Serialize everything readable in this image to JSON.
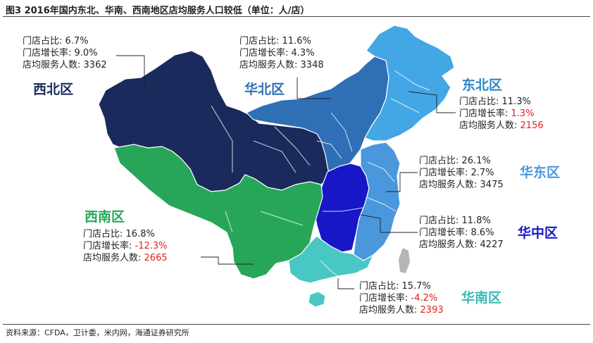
{
  "title": "图3  2016年国内东北、华南、西南地区店均服务人口较低（单位：人/店）",
  "source": "资料来源：CFDA，卫计委，米内网，海通证券研究所",
  "field_labels": {
    "share": "门店占比:",
    "growth": "门店增长率:",
    "service": "店均服务人数:"
  },
  "chart_data": {
    "type": "map",
    "title": "2016年国内东北、华南、西南地区店均服务人口较低（单位：人/店）",
    "regions": [
      {
        "key": "northwest",
        "name": "西北区",
        "store_share": "6.7%",
        "store_growth": "9.0%",
        "service_per_store": 3362,
        "color": "#1a2a5c"
      },
      {
        "key": "north",
        "name": "华北区",
        "store_share": "11.6%",
        "store_growth": "4.3%",
        "service_per_store": 3348,
        "color": "#2f6fb6"
      },
      {
        "key": "northeast",
        "name": "东北区",
        "store_share": "11.3%",
        "store_growth": "1.3%",
        "service_per_store": 2156,
        "color": "#43a7e6"
      },
      {
        "key": "east",
        "name": "华东区",
        "store_share": "26.1%",
        "store_growth": "2.7%",
        "service_per_store": 3475,
        "color": "#4a97dd"
      },
      {
        "key": "central",
        "name": "华中区",
        "store_share": "11.8%",
        "store_growth": "8.6%",
        "service_per_store": 4227,
        "color": "#1717c8"
      },
      {
        "key": "southwest",
        "name": "西南区",
        "store_share": "16.8%",
        "store_growth": "-12.3%",
        "service_per_store": 2665,
        "color": "#27a65a"
      },
      {
        "key": "south",
        "name": "华南区",
        "store_share": "15.7%",
        "store_growth": "-4.2%",
        "service_per_store": 2393,
        "color": "#48c7c4"
      }
    ],
    "highlight_color": "#e02020",
    "label_colors": {
      "northwest": "#1a2a5c",
      "north": "#2f6fb6",
      "northeast": "#2f86c8",
      "east": "#4a97dd",
      "central": "#1717c8",
      "southwest": "#27a65a",
      "south": "#38b9b6"
    }
  }
}
